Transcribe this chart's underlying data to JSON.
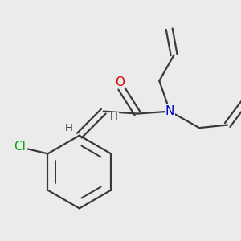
{
  "bg_color": "#ebebeb",
  "bond_color": "#3a3a3a",
  "bond_width": 1.6,
  "atom_colors": {
    "O": "#dd0000",
    "N": "#0000cc",
    "Cl": "#00aa00",
    "H": "#3a3a3a"
  },
  "font_size_atom": 11,
  "font_size_H": 9.5,
  "font_size_Cl": 11
}
